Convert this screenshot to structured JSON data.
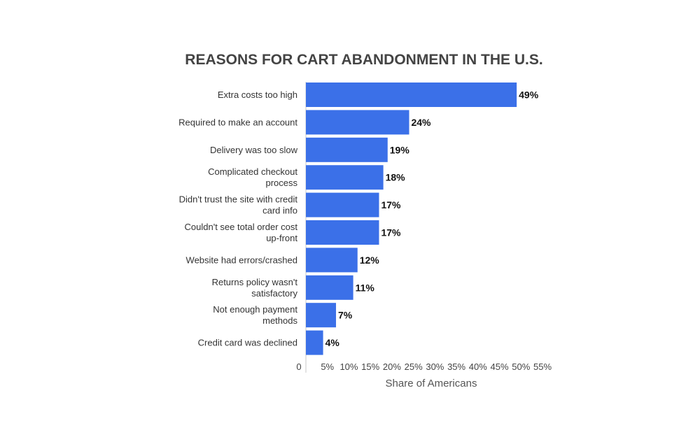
{
  "chart_data": {
    "type": "bar",
    "orientation": "horizontal",
    "title": "REASONS FOR CART ABANDONMENT IN THE U.S.",
    "xlabel": "Share of Americans",
    "ylabel": "",
    "categories": [
      [
        "Extra costs too high"
      ],
      [
        "Required to make an account"
      ],
      [
        "Delivery was too slow"
      ],
      [
        "Complicated checkout",
        "process"
      ],
      [
        "Didn't trust the site with credit",
        "card info"
      ],
      [
        "Couldn't see total order cost",
        "up-front"
      ],
      [
        "Website had errors/crashed"
      ],
      [
        "Returns policy wasn't",
        "satisfactory"
      ],
      [
        "Not enough payment",
        "methods"
      ],
      [
        "Credit card was declined"
      ]
    ],
    "values": [
      49,
      24,
      19,
      18,
      17,
      17,
      12,
      11,
      7,
      4
    ],
    "value_labels": [
      "49%",
      "24%",
      "19%",
      "18%",
      "17%",
      "17%",
      "12%",
      "11%",
      "7%",
      "4%"
    ],
    "xlim": [
      0,
      55
    ],
    "x_ticks": [
      0,
      5,
      10,
      15,
      20,
      25,
      30,
      35,
      40,
      45,
      50,
      55
    ],
    "x_tick_labels": [
      "0",
      "5%",
      "10%",
      "15%",
      "20%",
      "25%",
      "30%",
      "35%",
      "40%",
      "45%",
      "50%",
      "55%"
    ],
    "bar_color": "#3b70e8",
    "grid": false,
    "legend": "none"
  }
}
